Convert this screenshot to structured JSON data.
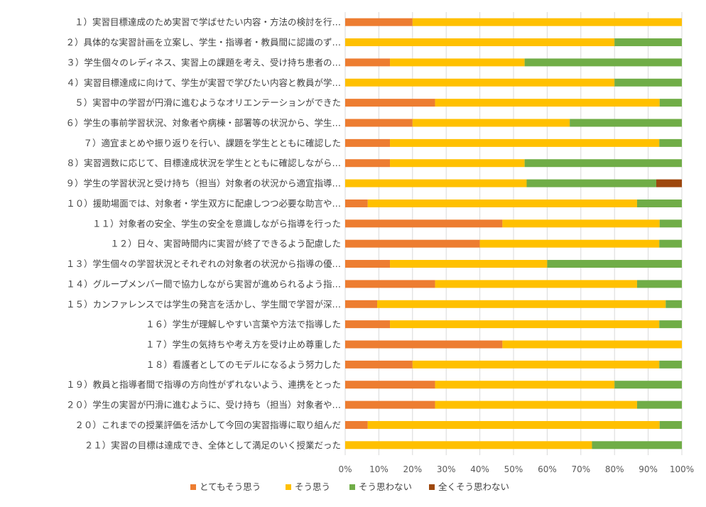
{
  "chart_data": {
    "type": "bar",
    "orientation": "horizontal",
    "stacked": "percent",
    "categories": [
      "１）実習目標達成のため実習で学ばせたい内容・方法の検討を行…",
      "２）具体的な実習計画を立案し、学生・指導者・教員間に認識のず…",
      "３）学生個々のレディネス、実習上の課題を考え、受け持ち患者の…",
      "４）実習目標達成に向けて、学生が実習で学びたい内容と教員が学…",
      "５）実習中の学習が円滑に進むようなオリエンテーションができた",
      "６）学生の事前学習状況、対象者や病棟・部署等の状況から、学生…",
      "７）適宜まとめや振り返りを行い、課題を学生とともに確認した",
      "８）実習週数に応じて、目標達成状況を学生とともに確認しながら…",
      "９）学生の学習状況と受け持ち（担当）対象者の状況から適宜指導…",
      "１０）援助場面では、対象者・学生双方に配慮しつつ必要な助言や…",
      "１１）対象者の安全、学生の安全を意識しながら指導を行った",
      "１２）日々、実習時間内に実習が終了できるよう配慮した",
      "１３）学生個々の学習状況とそれぞれの対象者の状況から指導の優…",
      "１４）グループメンバー間で協力しながら実習が進められるよう指…",
      "１５）カンファレンスでは学生の発言を活かし、学生間で学習が深…",
      "１６）学生が理解しやすい言葉や方法で指導した",
      "１７）学生の気持ちや考え方を受け止め尊重した",
      "１８）看護者としてのモデルになるよう努力した",
      "１９）教員と指導者間で指導の方向性がずれないよう、連携をとった",
      "２０）学生の実習が円滑に進むように、受け持ち（担当）対象者や…",
      "２０）これまでの授業評価を活かして今回の実習指導に取り組んだ",
      "２１）実習の目標は達成でき、全体として満足のいく授業だった"
    ],
    "series": [
      {
        "name": "とてもそう思う",
        "color": "#ED7D31",
        "values": [
          20,
          0,
          13.3,
          0,
          26.7,
          20,
          13.3,
          13.3,
          0,
          6.7,
          46.7,
          40,
          13.3,
          26.7,
          9.5,
          13.3,
          46.7,
          20,
          26.7,
          26.7,
          6.7,
          0
        ]
      },
      {
        "name": "そう思う",
        "color": "#FFC000",
        "values": [
          80,
          80,
          40,
          80,
          66.7,
          46.7,
          80,
          40,
          53.9,
          80,
          46.7,
          53.3,
          46.7,
          60,
          85.7,
          80,
          53.3,
          73.3,
          53.3,
          60,
          86.7,
          73.3
        ]
      },
      {
        "name": "そう思わない",
        "color": "#70AD47",
        "values": [
          0,
          20,
          46.7,
          20,
          6.6,
          33.3,
          6.7,
          46.7,
          38.5,
          13.3,
          6.6,
          6.7,
          40,
          13.3,
          4.8,
          6.7,
          0,
          6.7,
          20,
          13.3,
          6.6,
          26.7
        ]
      },
      {
        "name": "全くそう思わない",
        "color": "#9E480E",
        "values": [
          0,
          0,
          0,
          0,
          0,
          0,
          0,
          0,
          7.6,
          0,
          0,
          0,
          0,
          0,
          0,
          0,
          0,
          0,
          0,
          0,
          0,
          0
        ]
      }
    ],
    "x_ticks": [
      "0%",
      "10%",
      "20%",
      "30%",
      "40%",
      "50%",
      "60%",
      "70%",
      "80%",
      "90%",
      "100%"
    ],
    "xlim": [
      0,
      100
    ],
    "grid": true,
    "legend_position": "bottom",
    "title": "",
    "xlabel": "",
    "ylabel": ""
  }
}
